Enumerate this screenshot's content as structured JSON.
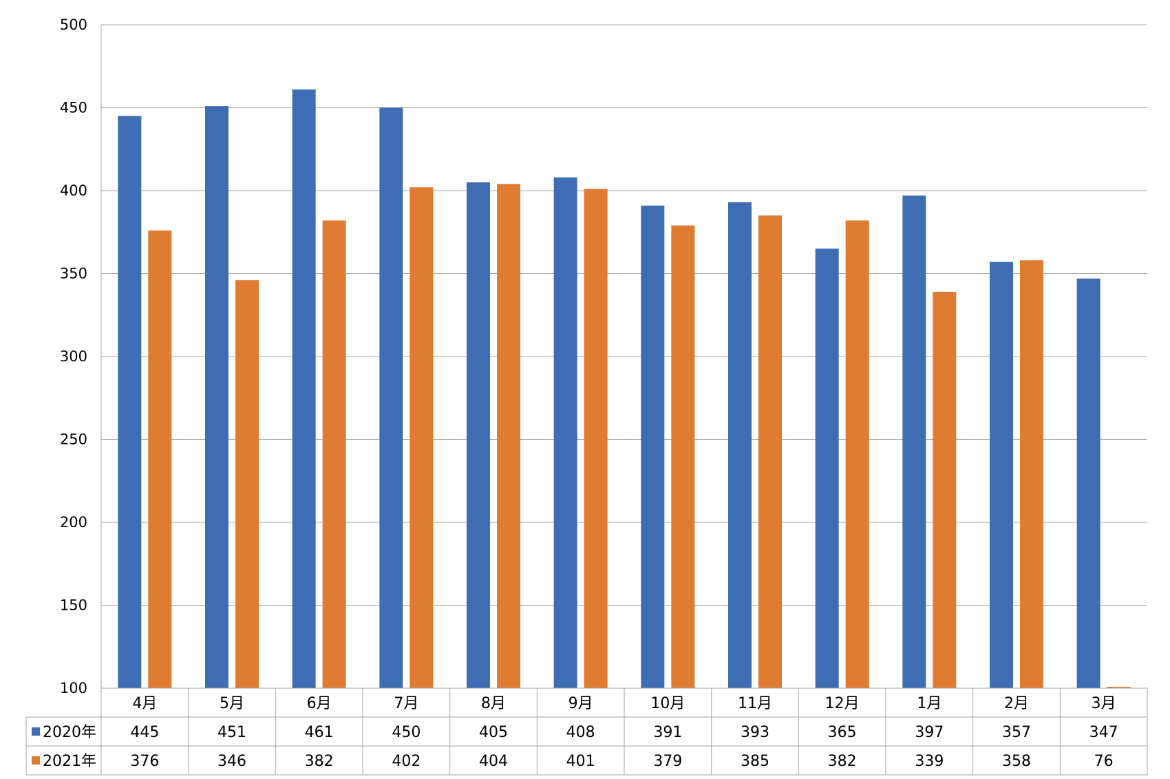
{
  "chart_data": {
    "type": "bar",
    "title": "",
    "xlabel": "",
    "ylabel": "",
    "ylim": [
      100,
      500
    ],
    "yticks": [
      100,
      150,
      200,
      250,
      300,
      350,
      400,
      450,
      500
    ],
    "grid": true,
    "legend": "data-table-left",
    "categories": [
      "4月",
      "5月",
      "6月",
      "7月",
      "8月",
      "9月",
      "10月",
      "11月",
      "12月",
      "1月",
      "2月",
      "3月"
    ],
    "series": [
      {
        "name": "2020年",
        "color": "#3F6DB4",
        "values": [
          445,
          451,
          461,
          450,
          405,
          408,
          391,
          393,
          365,
          397,
          357,
          347
        ]
      },
      {
        "name": "2021年",
        "color": "#E07B32",
        "values": [
          376,
          346,
          382,
          402,
          404,
          401,
          379,
          385,
          382,
          339,
          358,
          76
        ]
      }
    ]
  }
}
